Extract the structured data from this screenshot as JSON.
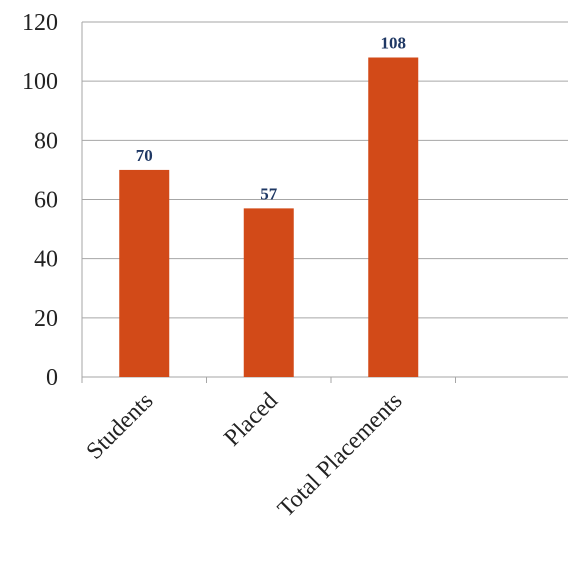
{
  "chart_data": {
    "type": "bar",
    "title": "",
    "xlabel": "",
    "ylabel": "",
    "categories": [
      "Students",
      "Placed",
      "Total Placements"
    ],
    "values": [
      70,
      57,
      108
    ],
    "data_labels": [
      "70",
      "57",
      "108"
    ],
    "ylim": [
      0,
      120
    ],
    "yticks": [
      "0",
      "20",
      "40",
      "60",
      "80",
      "100",
      "120"
    ],
    "grid": true,
    "legend": "none",
    "colors": {
      "bar": "#d24a18",
      "data_label": "#1f3864",
      "grid": "#a6a6a6",
      "axis": "#a6a6a6"
    }
  }
}
